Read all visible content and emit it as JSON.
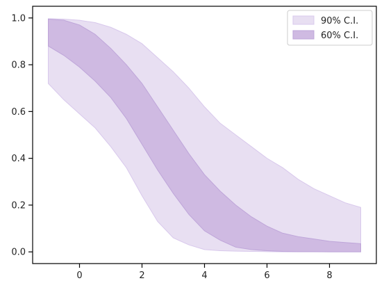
{
  "chart_data": {
    "type": "area",
    "title": "",
    "xlabel": "",
    "ylabel": "",
    "xlim": [
      -1.5,
      9.5
    ],
    "ylim": [
      -0.05,
      1.05
    ],
    "xticks": [
      0,
      2,
      4,
      6,
      8
    ],
    "yticks": [
      0.0,
      0.2,
      0.4,
      0.6,
      0.8,
      1.0
    ],
    "xtick_labels": [
      "0",
      "2",
      "4",
      "6",
      "8"
    ],
    "ytick_labels": [
      "0.0",
      "0.2",
      "0.4",
      "0.6",
      "0.8",
      "1.0"
    ],
    "grid": false,
    "legend_position": "top-right",
    "series": [
      {
        "name": "90% C.I.",
        "color": "#e8dff2",
        "edge_color": "#d8c8ec",
        "x": [
          -1,
          -0.5,
          0,
          0.5,
          1,
          1.5,
          2,
          2.5,
          3,
          3.5,
          4,
          4.5,
          5,
          5.5,
          6,
          6.5,
          7,
          7.5,
          8,
          8.5,
          9
        ],
        "lower": [
          0.72,
          0.65,
          0.59,
          0.53,
          0.45,
          0.36,
          0.24,
          0.13,
          0.06,
          0.03,
          0.01,
          0.005,
          0.003,
          0.002,
          0.001,
          0.0,
          0.0,
          0.0,
          0.0,
          0.0,
          0.0
        ],
        "upper": [
          0.997,
          0.995,
          0.99,
          0.98,
          0.96,
          0.93,
          0.89,
          0.83,
          0.77,
          0.7,
          0.62,
          0.55,
          0.5,
          0.45,
          0.4,
          0.36,
          0.31,
          0.27,
          0.24,
          0.21,
          0.19
        ]
      },
      {
        "name": "60% C.I.",
        "color": "#cfbae2",
        "edge_color": "#bea5d9",
        "x": [
          -1,
          -0.5,
          0,
          0.5,
          1,
          1.5,
          2,
          2.5,
          3,
          3.5,
          4,
          4.5,
          5,
          5.5,
          6,
          6.5,
          7,
          7.5,
          8,
          8.5,
          9
        ],
        "lower": [
          0.88,
          0.84,
          0.79,
          0.73,
          0.66,
          0.57,
          0.46,
          0.35,
          0.25,
          0.16,
          0.09,
          0.05,
          0.02,
          0.01,
          0.005,
          0.002,
          0.001,
          0.001,
          0.0,
          0.0,
          0.0
        ],
        "upper": [
          0.995,
          0.99,
          0.97,
          0.93,
          0.87,
          0.8,
          0.72,
          0.62,
          0.52,
          0.42,
          0.33,
          0.26,
          0.2,
          0.15,
          0.11,
          0.08,
          0.065,
          0.055,
          0.045,
          0.04,
          0.035
        ]
      }
    ]
  }
}
